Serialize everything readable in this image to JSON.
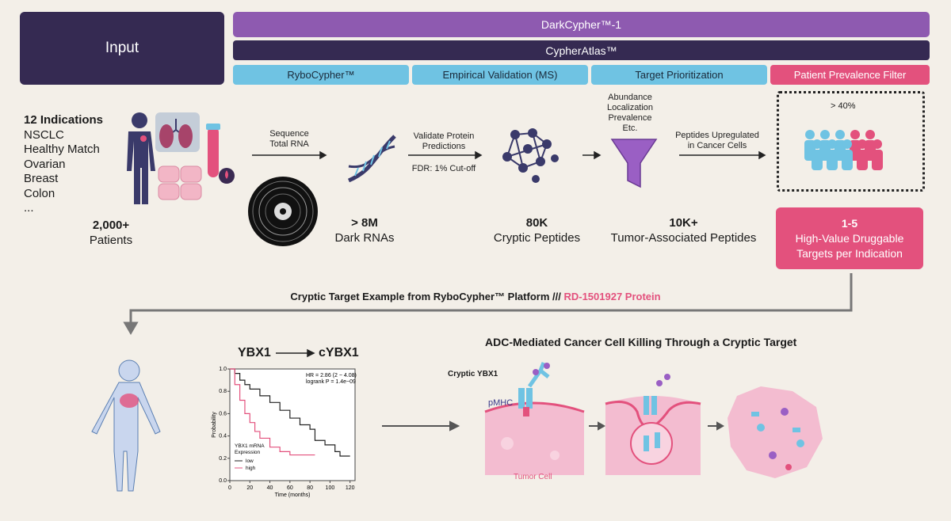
{
  "header": {
    "input_label": "Input",
    "platform_label": "DarkCypher™-1",
    "atlas_label": "CypherAtlas™",
    "stages": [
      "RyboCypher™",
      "Empirical Validation (MS)",
      "Target Prioritization",
      "Patient Prevalence Filter"
    ]
  },
  "indications": {
    "title": "12 Indications",
    "items": [
      "NSCLC",
      "Healthy Match",
      "Ovarian",
      "Breast",
      "Colon",
      "..."
    ]
  },
  "steps": {
    "sequence": [
      "Sequence",
      "Total RNA"
    ],
    "validate": [
      "Validate Protein",
      "Predictions"
    ],
    "fdr": "FDR: 1% Cut-off",
    "criteria": [
      "Abundance",
      "Localization",
      "Prevalence",
      "Etc."
    ],
    "upregulated": [
      "Peptides Upregulated",
      "in Cancer Cells"
    ]
  },
  "stats": [
    {
      "value": "2,000+",
      "label": "Patients"
    },
    {
      "value": "> 8M",
      "label": "Dark RNAs"
    },
    {
      "value": "80K",
      "label": "Cryptic Peptides"
    },
    {
      "value": "10K+",
      "label": "Tumor-Associated Peptides"
    }
  ],
  "prevalence": {
    "threshold": "> 40%",
    "highlighted_fraction": 0.4
  },
  "result": {
    "value": "1-5",
    "line1": "High-Value Druggable",
    "line2": "Targets per Indication"
  },
  "example": {
    "caption": "Cryptic Target Example from RyboCypher™ Platform ///",
    "protein": "RD-1501927 Protein"
  },
  "genes": {
    "from": "YBX1",
    "to": "cYBX1"
  },
  "km_plot": {
    "stats_line1": "HR = 2.86 (2 − 4.08)",
    "stats_line2": "logrank P = 1.4e−09",
    "ylabel": "Probability",
    "xlabel": "Time (months)",
    "legend_title1": "YBX1 mRNA",
    "legend_title2": "Expression",
    "legend_low": "low",
    "legend_high": "high",
    "colors": {
      "low": "#222222",
      "high": "#e3517d"
    }
  },
  "chart_data": {
    "type": "line",
    "xlabel": "Time (months)",
    "ylabel": "Probability",
    "xlim": [
      0,
      125
    ],
    "ylim": [
      0,
      1
    ],
    "xticks": [
      0,
      20,
      40,
      60,
      80,
      100,
      120
    ],
    "yticks": [
      0.0,
      0.2,
      0.4,
      0.6,
      0.8,
      1.0
    ],
    "series": [
      {
        "name": "low",
        "x": [
          0,
          5,
          10,
          15,
          20,
          30,
          40,
          50,
          60,
          70,
          80,
          85,
          95,
          105,
          110,
          120
        ],
        "y": [
          1.0,
          0.96,
          0.9,
          0.86,
          0.82,
          0.76,
          0.7,
          0.63,
          0.56,
          0.5,
          0.46,
          0.36,
          0.32,
          0.26,
          0.22,
          0.22
        ]
      },
      {
        "name": "high",
        "x": [
          0,
          5,
          10,
          15,
          20,
          25,
          30,
          40,
          50,
          60,
          70,
          85
        ],
        "y": [
          1.0,
          0.86,
          0.72,
          0.6,
          0.52,
          0.44,
          0.38,
          0.3,
          0.26,
          0.23,
          0.23,
          0.23
        ]
      }
    ]
  },
  "adc": {
    "title": "ADC-Mediated Cancer Cell Killing Through a Cryptic Target",
    "cryptic_label": "Cryptic YBX1",
    "pmhc_label": "pMHC",
    "tumor_label": "Tumor Cell"
  }
}
